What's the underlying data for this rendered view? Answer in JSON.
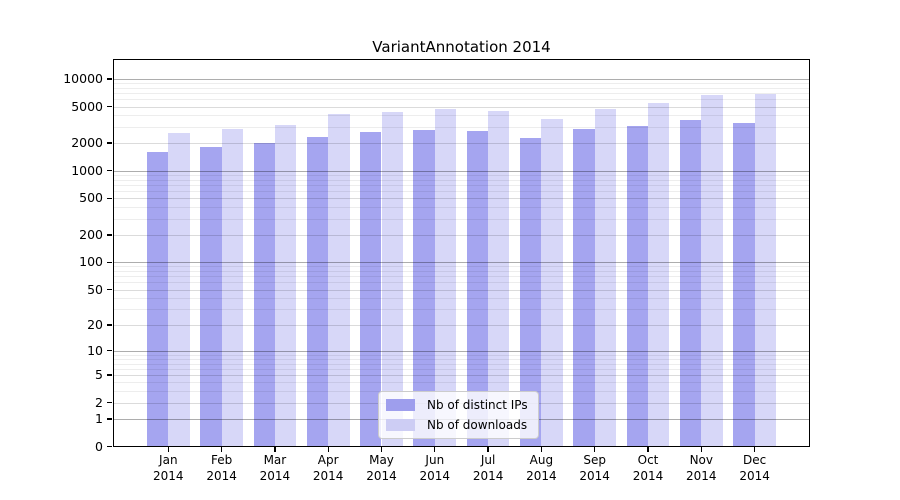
{
  "page": {
    "background": "#ffffff"
  },
  "chart_data": {
    "type": "bar",
    "title": "VariantAnnotation 2014",
    "x_categories": [
      "Jan",
      "Feb",
      "Mar",
      "Apr",
      "May",
      "Jun",
      "Jul",
      "Aug",
      "Sep",
      "Oct",
      "Nov",
      "Dec"
    ],
    "x_year": "2014",
    "series": [
      {
        "name": "Nb of distinct IPs",
        "color": "#a5a5f0",
        "legend_color": "#9e9eed",
        "values": [
          1620,
          1810,
          2000,
          2320,
          2630,
          2810,
          2720,
          2260,
          2870,
          3060,
          3550,
          3350
        ]
      },
      {
        "name": "Nb of downloads",
        "color": "#d7d7f8",
        "legend_color": "#cdcdf4",
        "values": [
          2600,
          2860,
          3140,
          4100,
          4400,
          4750,
          4430,
          3680,
          4650,
          5400,
          6700,
          6800
        ]
      }
    ],
    "y_scale": "log10(value+1)",
    "y_ticks": [
      0,
      1,
      2,
      5,
      10,
      20,
      50,
      100,
      200,
      500,
      1000,
      2000,
      5000,
      10000
    ],
    "y_max": 10000,
    "grid": true,
    "legend_position": "lower center",
    "gridline_color_major": "#aeaeae",
    "gridline_color_minor": "#ededed"
  }
}
